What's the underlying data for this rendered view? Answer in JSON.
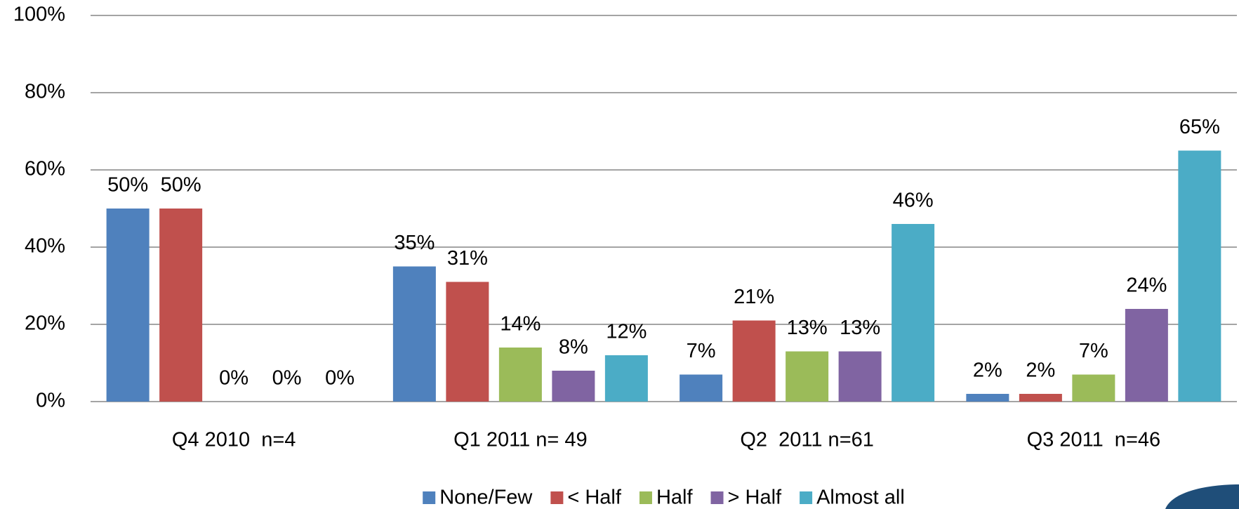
{
  "chart_data": {
    "type": "bar",
    "categories": [
      "Q4 2010  n=4",
      "Q1 2011 n= 49",
      "Q2  2011 n=61",
      "Q3 2011  n=46"
    ],
    "series": [
      {
        "name": "None/Few",
        "color": "#4f81bd",
        "values": [
          50,
          35,
          7,
          2
        ],
        "value_labels": [
          "50%",
          "35%",
          "7%",
          "2%"
        ]
      },
      {
        "name": "< Half",
        "color": "#c0504d",
        "values": [
          50,
          31,
          21,
          2
        ],
        "value_labels": [
          "50%",
          "31%",
          "21%",
          "2%"
        ]
      },
      {
        "name": "Half",
        "color": "#9bbb59",
        "values": [
          0,
          14,
          13,
          7
        ],
        "value_labels": [
          "0%",
          "14%",
          "13%",
          "7%"
        ]
      },
      {
        "name": "> Half",
        "color": "#8064a2",
        "values": [
          0,
          8,
          13,
          24
        ],
        "value_labels": [
          "0%",
          "8%",
          "13%",
          "24%"
        ]
      },
      {
        "name": "Almost all",
        "color": "#4bacc6",
        "values": [
          0,
          12,
          46,
          65
        ],
        "value_labels": [
          "0%",
          "12%",
          "46%",
          "65%"
        ]
      }
    ],
    "ylim": [
      0,
      100
    ],
    "yticks": [
      {
        "value": 0,
        "label": "0%"
      },
      {
        "value": 20,
        "label": "20%"
      },
      {
        "value": 40,
        "label": "40%"
      },
      {
        "value": 60,
        "label": "60%"
      },
      {
        "value": 80,
        "label": "80%"
      },
      {
        "value": 100,
        "label": "100%"
      }
    ],
    "grid": true,
    "legend": "bottom"
  }
}
